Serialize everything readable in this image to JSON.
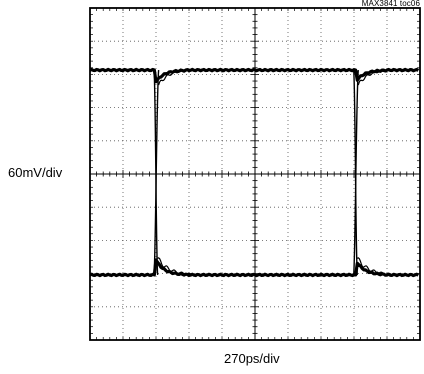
{
  "figure_id": "MAX3841 toc06",
  "chart_data": {
    "type": "line",
    "title": "",
    "ylabel": "60mV/div",
    "xlabel": "270ps/div",
    "x_units": "div",
    "y_units": "div",
    "xlim": [
      0,
      10
    ],
    "ylim": [
      0,
      10
    ],
    "grid": true,
    "x_divisions": 10,
    "y_divisions": 10,
    "series": [
      {
        "values_description": "eye diagram traces",
        "high_level_div": 8.13,
        "low_level_div": 1.96,
        "transitions_x_div": [
          2.0,
          8.05
        ]
      }
    ]
  }
}
